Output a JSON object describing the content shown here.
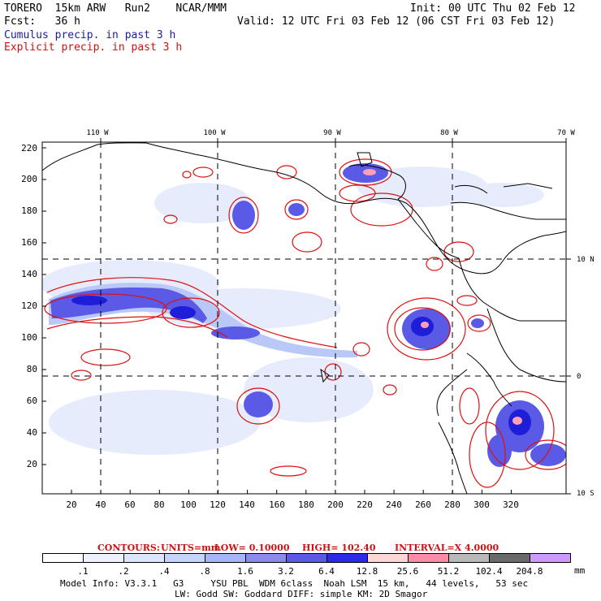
{
  "header": {
    "model": "TORERO  15km ARW   Run2    NCAR/MMM",
    "init": "Init: 00 UTC Thu 02 Feb 12",
    "fcst": "Fcst:   36 h",
    "valid": "Valid: 12 UTC Fri 03 Feb 12 (06 CST Fri 03 Feb 12)",
    "legend_cumulus": "Cumulus precip. in past 3 h",
    "legend_explicit": "Explicit precip. in past 3 h"
  },
  "map": {
    "lon_labels": [
      "110 W",
      "100 W",
      "90 W",
      "80 W",
      "70 W"
    ],
    "lat_labels_right": [
      "10 N",
      "0",
      "10 S"
    ],
    "y_ticks": [
      "220",
      "200",
      "180",
      "160",
      "140",
      "120",
      "100",
      "80",
      "60",
      "40",
      "20"
    ],
    "x_ticks": [
      "20",
      "40",
      "60",
      "80",
      "100",
      "120",
      "140",
      "160",
      "180",
      "200",
      "220",
      "240",
      "260",
      "280",
      "300",
      "320"
    ]
  },
  "contours": {
    "label": "CONTOURS:",
    "units": "UNITS=mm",
    "low": "LOW= 0.10000",
    "high": "HIGH= 102.40",
    "interval": "INTERVAL=X  4.0000"
  },
  "colorbar": {
    "labels": [
      ".1",
      ".2",
      ".4",
      ".8",
      "1.6",
      "3.2",
      "6.4",
      "12.8",
      "25.6",
      "51.2",
      "102.4",
      "204.8"
    ],
    "unit": "mm",
    "colors": [
      "#ffffff",
      "#eef2ff",
      "#dde6ff",
      "#c4d4fb",
      "#a6b6f4",
      "#8a8aee",
      "#5a5ae6",
      "#2a2ae8",
      "#ffd6d6",
      "#ff8aa8",
      "#b8b8b8",
      "#6a6a6a",
      "#cc99ff"
    ]
  },
  "footer": {
    "line1": "Model Info: V3.3.1   G3     YSU PBL  WDM 6class  Noah LSM  15 km,   44 levels,   53 sec",
    "line2": "LW: Godd SW: Goddard DIFF: simple KM: 2D Smagor"
  }
}
